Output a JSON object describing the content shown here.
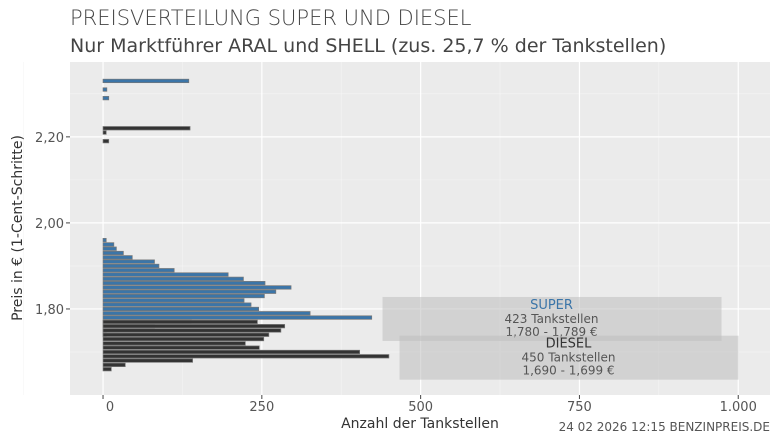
{
  "chart_data": {
    "type": "bar",
    "orientation": "horizontal",
    "title": "PREISVERTEILUNG SUPER UND DIESEL",
    "subtitle": "Nur Marktführer ARAL und SHELL (zus. 25,7 % der Tankstellen)",
    "xlabel": "Anzahl der Tankstellen",
    "ylabel": "Preis in € (1-Cent-Schritte)",
    "xlim": [
      -52,
      1050
    ],
    "ylim": [
      1.6,
      2.374
    ],
    "x_ticks": [
      0,
      250,
      500,
      750,
      1000
    ],
    "x_tick_labels": [
      "0",
      "250",
      "500",
      "750",
      "1.000"
    ],
    "y_ticks": [
      1.8,
      2.0,
      2.2
    ],
    "y_tick_labels": [
      "1,80",
      "2,00",
      "2,20"
    ],
    "grid": true,
    "series": [
      {
        "name": "SUPER",
        "color": "#3b75a8",
        "points": [
          [
            2.33,
            135
          ],
          [
            2.31,
            6
          ],
          [
            2.29,
            9
          ],
          [
            1.96,
            5
          ],
          [
            1.95,
            17
          ],
          [
            1.94,
            21
          ],
          [
            1.93,
            32
          ],
          [
            1.92,
            46
          ],
          [
            1.91,
            81
          ],
          [
            1.9,
            88
          ],
          [
            1.89,
            112
          ],
          [
            1.88,
            197
          ],
          [
            1.87,
            221
          ],
          [
            1.86,
            255
          ],
          [
            1.85,
            296
          ],
          [
            1.84,
            272
          ],
          [
            1.83,
            254
          ],
          [
            1.82,
            222
          ],
          [
            1.81,
            233
          ],
          [
            1.8,
            245
          ],
          [
            1.79,
            326
          ],
          [
            1.78,
            423
          ],
          [
            1.77,
            139
          ],
          [
            1.76,
            81
          ],
          [
            1.75,
            24
          ],
          [
            1.74,
            5
          ]
        ]
      },
      {
        "name": "DIESEL",
        "color": "#333333",
        "points": [
          [
            2.22,
            137
          ],
          [
            2.21,
            5
          ],
          [
            2.19,
            9
          ],
          [
            1.77,
            243
          ],
          [
            1.76,
            286
          ],
          [
            1.75,
            280
          ],
          [
            1.74,
            261
          ],
          [
            1.73,
            253
          ],
          [
            1.72,
            224
          ],
          [
            1.71,
            246
          ],
          [
            1.7,
            404
          ],
          [
            1.69,
            450
          ],
          [
            1.68,
            141
          ],
          [
            1.67,
            35
          ],
          [
            1.66,
            13
          ]
        ]
      }
    ],
    "annotations": [
      {
        "label": "SUPER",
        "color": "#3b75a8",
        "count": "423 Tankstellen",
        "range": "1,780 - 1,789 €"
      },
      {
        "label": "DIESEL",
        "color": "#333333",
        "count": "450 Tankstellen",
        "range": "1,690 - 1,699 €"
      }
    ]
  },
  "footer": "24 02 2026 12:15 BENZINPREIS.DE"
}
